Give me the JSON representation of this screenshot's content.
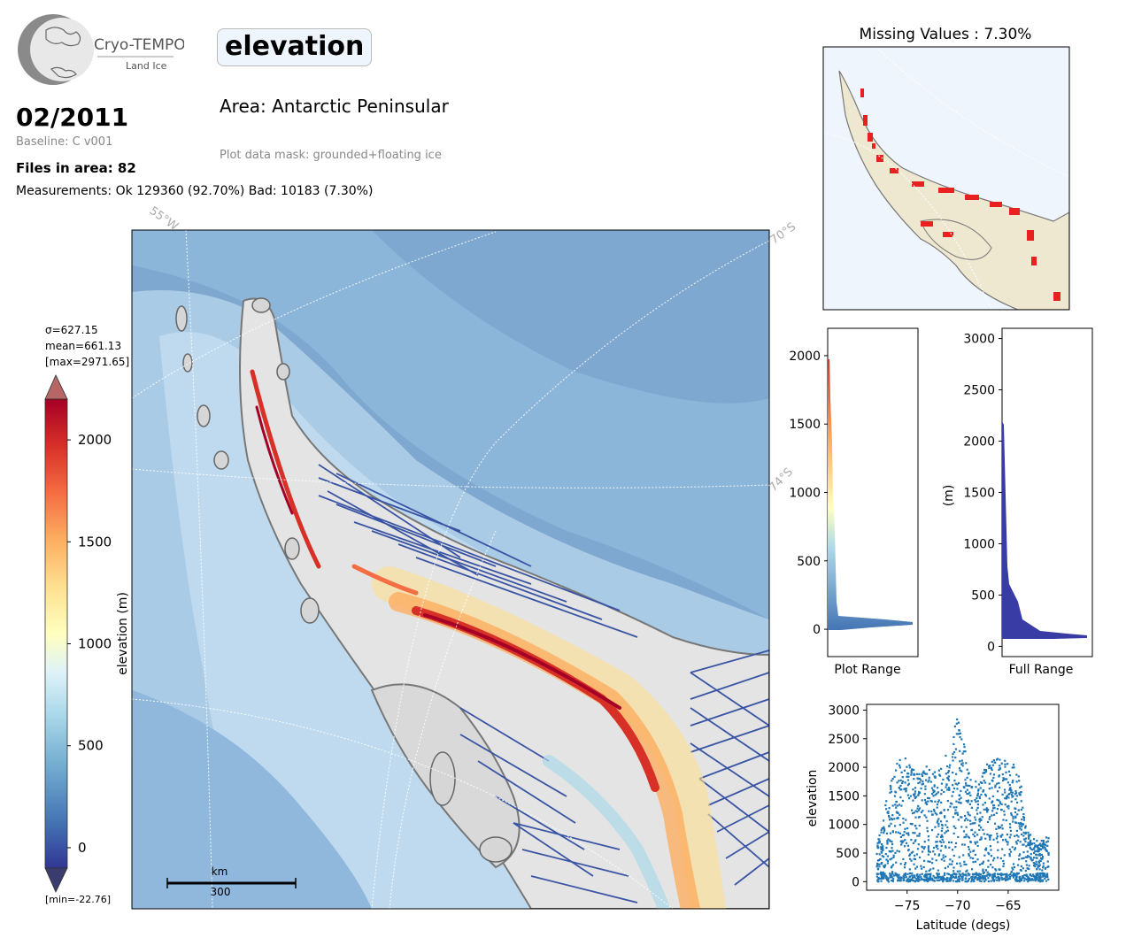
{
  "header": {
    "logo_title": "Cryo-TEMPO",
    "logo_subtitle": "Land Ice",
    "date": "02/2011",
    "baseline": "Baseline: C v001",
    "files_in_area": "Files in area: 82",
    "measurements": "Measurements: Ok 129360 (92.70%) Bad: 10183 (7.30%)",
    "parameter": "elevation",
    "area": "Area: Antarctic Peninsular",
    "mask": "Plot data mask: grounded+floating ice"
  },
  "map": {
    "gridlabels": [
      "55°W",
      "70°S",
      "74°S"
    ],
    "scalebar_unit": "km",
    "scalebar_value": "300",
    "colors": {
      "ocean_deep": "#7ea8cf",
      "ocean_shelf": "#bcd7ec",
      "land_grey": "#e6e6e6",
      "track": "#3a54a4"
    }
  },
  "colorbar": {
    "stats": [
      "σ=627.15",
      "mean=661.13",
      "[max=2971.65]"
    ],
    "min_label": "[min=-22.76]",
    "label": "elevation (m)",
    "vmin": -100,
    "vmax": 2200,
    "ticks": [
      0,
      500,
      1000,
      1500,
      2000
    ]
  },
  "missing": {
    "title": "Missing Values : 7.30%"
  },
  "hist_plot": {
    "label": "Plot Range",
    "ylim": [
      -200,
      2200
    ],
    "ticks": [
      0,
      500,
      1000,
      1500,
      2000
    ]
  },
  "hist_full": {
    "label": "Full Range",
    "ylabel": "(m)",
    "ylim": [
      -100,
      3100
    ],
    "ticks": [
      0,
      500,
      1000,
      1500,
      2000,
      2500,
      3000
    ]
  },
  "chart_data": {
    "type": "scatter",
    "xlabel": "Latitude (degs)",
    "ylabel": "elevation",
    "xlim": [
      -79,
      -60
    ],
    "ylim": [
      -150,
      3100
    ],
    "xticks": [
      -75,
      -70,
      -65
    ],
    "yticks": [
      0,
      500,
      1000,
      1500,
      2000,
      2500,
      3000
    ],
    "envelope": [
      {
        "lat": -78,
        "max": 600
      },
      {
        "lat": -77,
        "max": 1500
      },
      {
        "lat": -76,
        "max": 2100
      },
      {
        "lat": -75,
        "max": 2200
      },
      {
        "lat": -74,
        "max": 1900
      },
      {
        "lat": -73,
        "max": 2100
      },
      {
        "lat": -72,
        "max": 1900
      },
      {
        "lat": -71,
        "max": 2300
      },
      {
        "lat": -70,
        "max": 2950
      },
      {
        "lat": -69,
        "max": 2100
      },
      {
        "lat": -68,
        "max": 1700
      },
      {
        "lat": -67,
        "max": 2100
      },
      {
        "lat": -66,
        "max": 2200
      },
      {
        "lat": -65,
        "max": 2100
      },
      {
        "lat": -64,
        "max": 2000
      },
      {
        "lat": -63,
        "max": 900
      },
      {
        "lat": -62,
        "max": 700
      },
      {
        "lat": -61,
        "max": 800
      }
    ]
  }
}
